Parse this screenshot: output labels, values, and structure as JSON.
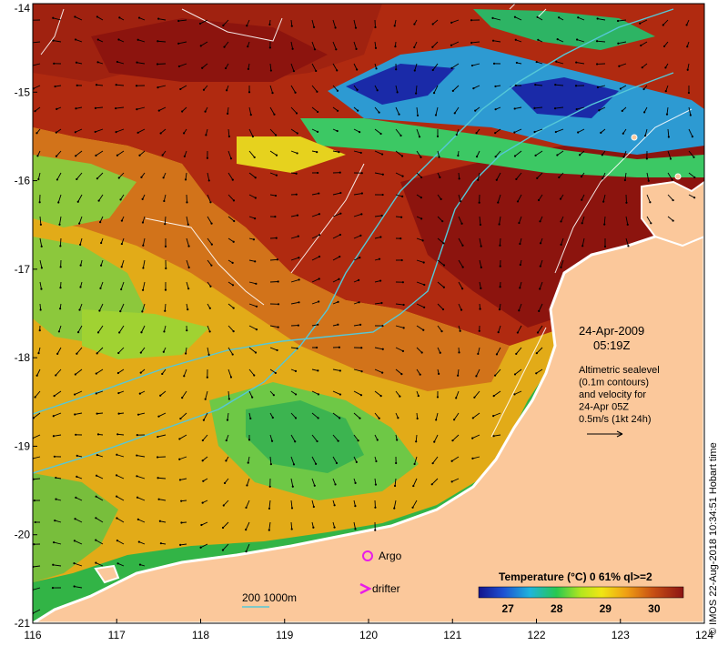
{
  "map": {
    "lon_ticks": [
      "116",
      "117",
      "118",
      "119",
      "120",
      "121",
      "122",
      "123",
      "124"
    ],
    "lat_ticks": [
      "-14",
      "-15",
      "-16",
      "-17",
      "-18",
      "-19",
      "-20",
      "-21"
    ],
    "lon_range": [
      116,
      124
    ],
    "lat_range": [
      -21,
      -14
    ]
  },
  "annotation": {
    "date": "24-Apr-2009",
    "time": "05:19Z",
    "desc_lines": [
      "Altimetric sealevel",
      "(0.1m contours)",
      "and velocity for",
      "24-Apr 05Z",
      "0.5m/s (1kt 24h)"
    ]
  },
  "legend": {
    "argo_label": "Argo",
    "drifter_label": "drifter",
    "depth_label": "200  1000m",
    "colorbar_title": "Temperature (°C) 0 61% ql>=2",
    "colorbar_ticks": [
      "27",
      "28",
      "29",
      "30"
    ],
    "colorbar_range": [
      26.4,
      30.6
    ]
  },
  "credit": "© IMOS 22-Aug-2018 10:34:51 Hobart time",
  "colors": {
    "land": "#fbc89b",
    "coastline": "#ffffff",
    "argo_marker": "#e81ce8",
    "drifter_marker": "#e81ce8",
    "depth_line": "#55c8d8",
    "sealevel_contour": "#ffffff"
  }
}
